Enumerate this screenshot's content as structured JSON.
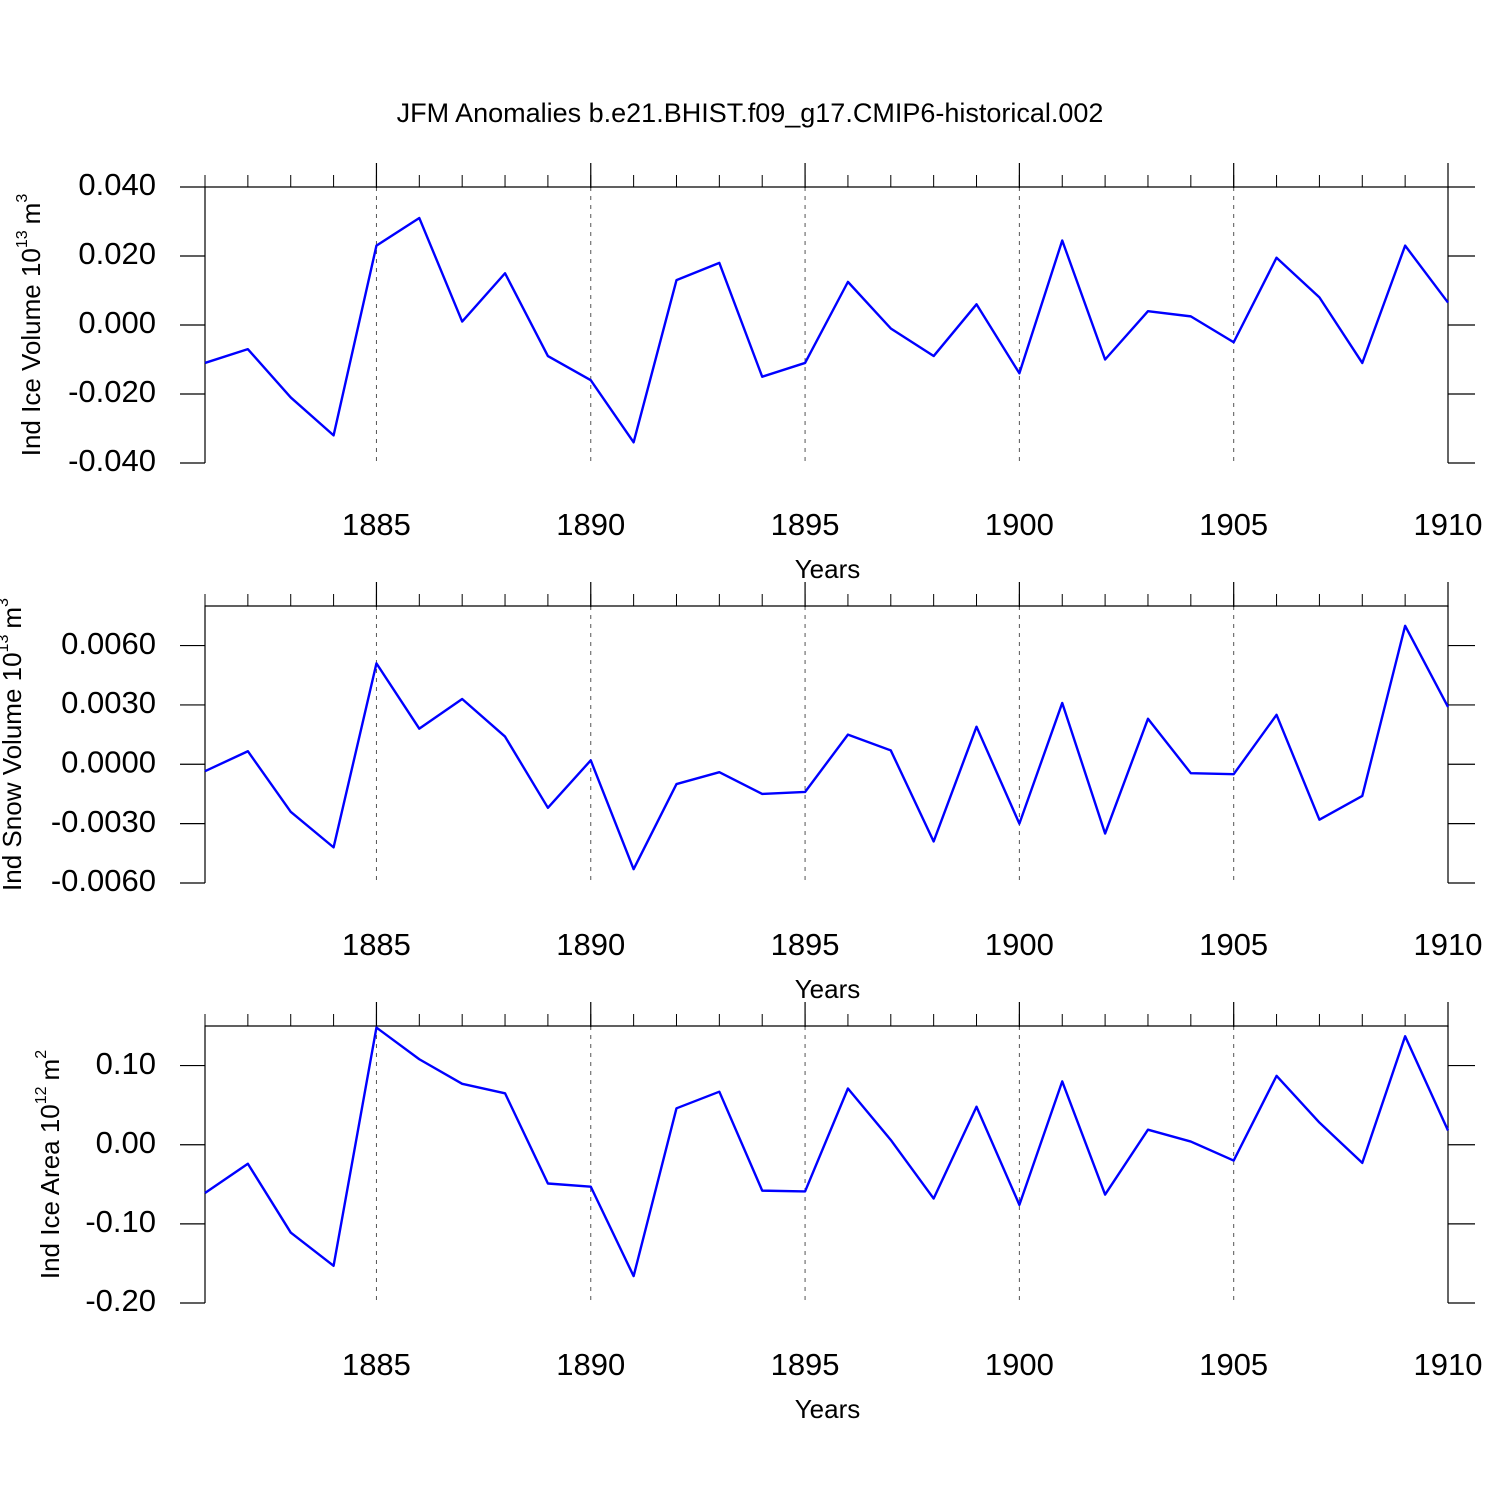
{
  "title": "JFM Anomalies b.e21.BHIST.f09_g17.CMIP6-historical.002",
  "chart_data": [
    {
      "type": "line",
      "ylabel": {
        "text": "Ind Ice Volume 10",
        "exponent": "13",
        "unit": "m",
        "unit_exponent": "3"
      },
      "xlabel": "Years",
      "x": [
        1881,
        1882,
        1883,
        1884,
        1885,
        1886,
        1887,
        1888,
        1889,
        1890,
        1891,
        1892,
        1893,
        1894,
        1895,
        1896,
        1897,
        1898,
        1899,
        1900,
        1901,
        1902,
        1903,
        1904,
        1905,
        1906,
        1907,
        1908,
        1909,
        1910
      ],
      "series": [
        {
          "color": "#0000ff",
          "values": [
            -0.011,
            -0.007,
            -0.021,
            -0.032,
            0.023,
            0.031,
            0.001,
            0.015,
            -0.009,
            -0.016,
            -0.034,
            0.013,
            0.018,
            -0.015,
            -0.011,
            0.0125,
            -0.001,
            -0.009,
            0.006,
            -0.014,
            0.0245,
            -0.01,
            0.004,
            0.0025,
            -0.005,
            0.0195,
            0.008,
            -0.011,
            0.023,
            0.0065
          ]
        }
      ],
      "xlim": [
        1881,
        1910
      ],
      "xticks": [
        1885,
        1890,
        1895,
        1900,
        1905,
        1910
      ],
      "ylim": [
        -0.04,
        0.04
      ],
      "yticks": [
        {
          "value": 0.04,
          "label": "0.040"
        },
        {
          "value": 0.02,
          "label": "0.020"
        },
        {
          "value": 0,
          "label": "0.000"
        },
        {
          "value": -0.02,
          "label": "-0.020"
        },
        {
          "value": -0.04,
          "label": "-0.040"
        }
      ],
      "grid": "x"
    },
    {
      "type": "line",
      "ylabel": {
        "text": "Ind Snow Volume 10",
        "exponent": "13",
        "unit": "m",
        "unit_exponent": "3"
      },
      "xlabel": "Years",
      "x": [
        1881,
        1882,
        1883,
        1884,
        1885,
        1886,
        1887,
        1888,
        1889,
        1890,
        1891,
        1892,
        1893,
        1894,
        1895,
        1896,
        1897,
        1898,
        1899,
        1900,
        1901,
        1902,
        1903,
        1904,
        1905,
        1906,
        1907,
        1908,
        1909,
        1910
      ],
      "series": [
        {
          "color": "#0000ff",
          "values": [
            -0.00035,
            0.00066,
            -0.0024,
            -0.0042,
            0.0051,
            0.0018,
            0.0033,
            0.0014,
            -0.0022,
            0.0002,
            -0.0053,
            -0.001,
            -0.0004,
            -0.0015,
            -0.0014,
            0.0015,
            0.0007,
            -0.0039,
            0.0019,
            -0.003,
            0.0031,
            -0.0035,
            0.0023,
            -0.00045,
            -0.0005,
            0.0025,
            -0.0028,
            -0.0016,
            0.007,
            0.0029
          ]
        }
      ],
      "xlim": [
        1881,
        1910
      ],
      "xticks": [
        1885,
        1890,
        1895,
        1900,
        1905,
        1910
      ],
      "ylim": [
        -0.006,
        0.008
      ],
      "yticks": [
        {
          "value": 0.006,
          "label": "0.0060"
        },
        {
          "value": 0.003,
          "label": "0.0030"
        },
        {
          "value": 0,
          "label": "0.0000"
        },
        {
          "value": -0.003,
          "label": "-0.0030"
        },
        {
          "value": -0.006,
          "label": "-0.0060"
        }
      ],
      "grid": "x"
    },
    {
      "type": "line",
      "ylabel": {
        "text": "Ind Ice Area 10",
        "exponent": "12",
        "unit": "m",
        "unit_exponent": "2"
      },
      "xlabel": "Years",
      "x": [
        1881,
        1882,
        1883,
        1884,
        1885,
        1886,
        1887,
        1888,
        1889,
        1890,
        1891,
        1892,
        1893,
        1894,
        1895,
        1896,
        1897,
        1898,
        1899,
        1900,
        1901,
        1902,
        1903,
        1904,
        1905,
        1906,
        1907,
        1908,
        1909,
        1910
      ],
      "series": [
        {
          "color": "#0000ff",
          "values": [
            -0.061,
            -0.024,
            -0.111,
            -0.153,
            0.148,
            0.108,
            0.077,
            0.065,
            -0.049,
            -0.053,
            -0.166,
            0.046,
            0.067,
            -0.058,
            -0.059,
            0.071,
            0.006,
            -0.068,
            0.048,
            -0.076,
            0.08,
            -0.063,
            0.019,
            0.004,
            -0.02,
            0.087,
            0.028,
            -0.023,
            0.137,
            0.018
          ]
        }
      ],
      "xlim": [
        1881,
        1910
      ],
      "xticks": [
        1885,
        1890,
        1895,
        1900,
        1905,
        1910
      ],
      "ylim": [
        -0.2,
        0.15
      ],
      "yticks": [
        {
          "value": 0.1,
          "label": "0.10"
        },
        {
          "value": 0,
          "label": "0.00"
        },
        {
          "value": -0.1,
          "label": "-0.10"
        },
        {
          "value": -0.2,
          "label": "-0.20"
        }
      ],
      "grid": "x"
    }
  ]
}
